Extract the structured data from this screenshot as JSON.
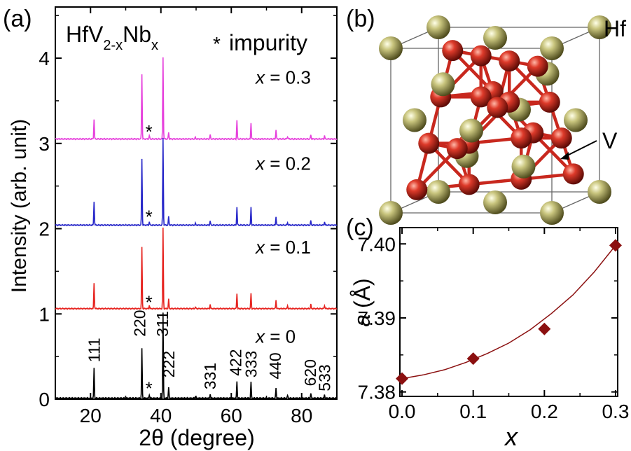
{
  "panel_labels": {
    "a": "(a)",
    "b": "(b)",
    "c": "(c)"
  },
  "structure": {
    "hf_label": "Hf",
    "v_label": "V",
    "colors": {
      "hf": "#a9a557",
      "v": "#c8281e",
      "bond": "#c8281e",
      "cell": "#666666"
    }
  },
  "chart_data": [
    {
      "type": "line",
      "title_parts": [
        "HfV",
        "2-x",
        "Nb",
        "x"
      ],
      "impurity_label": "impurity",
      "impurity_marker": "*",
      "xlabel": "2θ (degree)",
      "ylabel": "Intensity (arb. unit)",
      "xlim": [
        10,
        90
      ],
      "ylim": [
        0,
        4.6
      ],
      "xticks": [
        20,
        40,
        60,
        80
      ],
      "yticks": [
        0,
        1,
        2,
        3,
        4
      ],
      "grid": false,
      "series": [
        {
          "name": "x = 0",
          "label_prefix": "x",
          "label_value": "= 0",
          "offset": 0,
          "color": "#000000",
          "peaks": [
            [
              21.0,
              0.35
            ],
            [
              34.6,
              0.58
            ],
            [
              36.7,
              0.04
            ],
            [
              40.6,
              1.0
            ],
            [
              42.2,
              0.13
            ],
            [
              49.8,
              0.02
            ],
            [
              54.0,
              0.05
            ],
            [
              61.6,
              0.2
            ],
            [
              65.6,
              0.19
            ],
            [
              72.7,
              0.12
            ],
            [
              76.0,
              0.03
            ],
            [
              82.6,
              0.06
            ],
            [
              86.5,
              0.04
            ]
          ],
          "impurity_x": 36.6,
          "impurity_y": 0.17
        },
        {
          "name": "x = 0.1",
          "label_prefix": "x",
          "label_value": "= 0.1",
          "offset": 1.05,
          "color": "#e6231f",
          "peaks": [
            [
              21.0,
              0.3
            ],
            [
              34.6,
              0.72
            ],
            [
              36.7,
              0.04
            ],
            [
              40.6,
              0.95
            ],
            [
              42.2,
              0.11
            ],
            [
              49.8,
              0.02
            ],
            [
              54.0,
              0.05
            ],
            [
              61.6,
              0.18
            ],
            [
              65.6,
              0.18
            ],
            [
              72.7,
              0.1
            ],
            [
              76.0,
              0.03
            ],
            [
              82.6,
              0.05
            ],
            [
              86.5,
              0.04
            ]
          ],
          "impurity_x": 36.6,
          "impurity_y": 1.18
        },
        {
          "name": "x = 0.2",
          "label_prefix": "x",
          "label_value": "= 0.2",
          "offset": 2.03,
          "color": "#2727c9",
          "peaks": [
            [
              21.0,
              0.28
            ],
            [
              34.6,
              0.78
            ],
            [
              36.7,
              0.04
            ],
            [
              40.6,
              1.02
            ],
            [
              42.2,
              0.1
            ],
            [
              49.8,
              0.02
            ],
            [
              54.0,
              0.05
            ],
            [
              61.6,
              0.21
            ],
            [
              65.6,
              0.21
            ],
            [
              72.7,
              0.1
            ],
            [
              76.0,
              0.03
            ],
            [
              82.6,
              0.05
            ],
            [
              86.5,
              0.04
            ]
          ],
          "impurity_x": 36.6,
          "impurity_y": 2.18
        },
        {
          "name": "x = 0.3",
          "label_prefix": "x",
          "label_value": "= 0.3",
          "offset": 3.04,
          "color": "#e640dc",
          "peaks": [
            [
              21.0,
              0.23
            ],
            [
              34.6,
              0.76
            ],
            [
              36.7,
              0.04
            ],
            [
              40.6,
              0.96
            ],
            [
              42.2,
              0.08
            ],
            [
              49.8,
              0.02
            ],
            [
              54.0,
              0.05
            ],
            [
              61.6,
              0.22
            ],
            [
              65.6,
              0.19
            ],
            [
              72.7,
              0.11
            ],
            [
              76.0,
              0.03
            ],
            [
              82.6,
              0.05
            ],
            [
              86.5,
              0.04
            ]
          ],
          "impurity_x": 36.6,
          "impurity_y": 3.18
        }
      ],
      "peak_labels": [
        {
          "text": "111",
          "x": 21.0,
          "y": 0.4
        },
        {
          "text": "220",
          "x": 34.0,
          "y": 0.7
        },
        {
          "text": "311",
          "x": 40.4,
          "y": 0.7
        },
        {
          "text": "222",
          "x": 42.2,
          "y": 0.22
        },
        {
          "text": "331",
          "x": 54.0,
          "y": 0.08
        },
        {
          "text": "422",
          "x": 61.2,
          "y": 0.24
        },
        {
          "text": "333",
          "x": 65.6,
          "y": 0.22
        },
        {
          "text": "440",
          "x": 72.5,
          "y": 0.2
        },
        {
          "text": "620",
          "x": 82.4,
          "y": 0.12
        },
        {
          "text": "533",
          "x": 86.5,
          "y": 0.06
        }
      ]
    },
    {
      "type": "scatter",
      "xlabel": "x",
      "ylabel": "a (Å)",
      "ylabel_parts": [
        "a",
        "(Å)"
      ],
      "xlim": [
        0,
        0.3
      ],
      "ylim": [
        7.38,
        7.402
      ],
      "xticks": [
        "0.0",
        "0.1",
        "0.2",
        "0.3"
      ],
      "yticks": [
        "7.38",
        "7.39",
        "7.40"
      ],
      "grid": false,
      "marker_color": "#8b1010",
      "fit_color": "#8b1010",
      "x": [
        0.0,
        0.1,
        0.2,
        0.3
      ],
      "y": [
        7.3818,
        7.3845,
        7.3885,
        7.3998
      ],
      "fit": [
        [
          0.0,
          7.3818
        ],
        [
          0.03,
          7.3823
        ],
        [
          0.06,
          7.383
        ],
        [
          0.09,
          7.384
        ],
        [
          0.12,
          7.3852
        ],
        [
          0.15,
          7.3866
        ],
        [
          0.18,
          7.3884
        ],
        [
          0.21,
          7.3906
        ],
        [
          0.24,
          7.3931
        ],
        [
          0.27,
          7.3962
        ],
        [
          0.3,
          7.3998
        ]
      ]
    }
  ]
}
